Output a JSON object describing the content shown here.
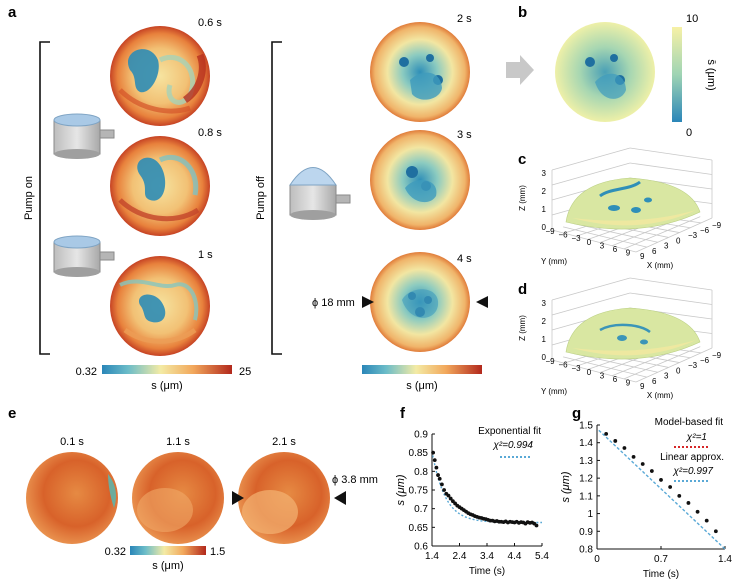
{
  "panels": {
    "a": {
      "letter": "a",
      "pump_on_label": "Pump on",
      "pump_off_label": "Pump off",
      "pump_on_times": [
        "0.6 s",
        "0.8 s",
        "1 s"
      ],
      "pump_off_times": [
        "2 s",
        "3 s",
        "4 s"
      ],
      "diameter_label": "ϕ 18 mm",
      "colorbar_min": "0.32",
      "colorbar_max": "25",
      "colorbar_label_on": "s (μm)",
      "colorbar_label_off": "s (μm)"
    },
    "b": {
      "letter": "b",
      "colorbar_max": "10",
      "colorbar_min": "0",
      "colorbar_label": "s̄ (μm)"
    },
    "c": {
      "letter": "c",
      "zlabel": "Z (mm)",
      "ylabel": "Y (mm)",
      "xlabel": "X (mm)",
      "z_ticks": [
        "3",
        "2",
        "1",
        "0"
      ],
      "y_ticks": [
        "−9",
        "−6",
        "−3",
        "0",
        "3",
        "6",
        "9"
      ],
      "x_ticks": [
        "9",
        "6",
        "3",
        "0",
        "−3",
        "−6",
        "−9"
      ]
    },
    "d": {
      "letter": "d",
      "zlabel": "Z (mm)",
      "ylabel": "Y (mm)",
      "xlabel": "X (mm)",
      "z_ticks": [
        "3",
        "2",
        "1",
        "0"
      ],
      "y_ticks": [
        "−9",
        "−6",
        "−3",
        "0",
        "3",
        "6",
        "9"
      ],
      "x_ticks": [
        "9",
        "6",
        "3",
        "0",
        "−3",
        "−6",
        "−9"
      ]
    },
    "e": {
      "letter": "e",
      "times": [
        "0.1 s",
        "1.1 s",
        "2.1 s"
      ],
      "diameter_label": "ϕ 3.8 mm",
      "colorbar_min": "0.32",
      "colorbar_max": "1.5",
      "colorbar_label": "s (μm)"
    },
    "f": {
      "letter": "f"
    },
    "g": {
      "letter": "g"
    }
  },
  "colors": {
    "teal": "#2f8fb8",
    "orange": "#d8622a",
    "dark_red": "#a8201a",
    "pale_yellow": "#f8eea8",
    "fit_blue": "#5aa9d6",
    "fit_red": "#d62728"
  },
  "chart_data": [
    {
      "id": "f",
      "type": "scatter",
      "title": "",
      "xlabel": "Time (s)",
      "ylabel": "s (μm)",
      "xlim": [
        1.4,
        5.4
      ],
      "ylim": [
        0.6,
        0.9
      ],
      "x_ticks": [
        "1.4",
        "2.4",
        "3.4",
        "4.4",
        "5.4"
      ],
      "y_ticks": [
        "0.9",
        "0.85",
        "0.8",
        "0.75",
        "0.7",
        "0.65",
        "0.6"
      ],
      "legend": {
        "placement": "top-right",
        "entries": [
          "Exponential fit"
        ],
        "stat": "χ²=0.994"
      },
      "series": [
        {
          "name": "Exponential fit",
          "x": [
            1.44,
            1.5,
            1.56,
            1.62,
            1.68,
            1.76,
            1.84,
            1.92,
            2.0,
            2.08,
            2.16,
            2.24,
            2.32,
            2.4,
            2.48,
            2.56,
            2.64,
            2.72,
            2.8,
            2.88,
            2.96,
            3.04,
            3.12,
            3.2,
            3.28,
            3.36,
            3.44,
            3.52,
            3.6,
            3.68,
            3.76,
            3.84,
            3.92,
            4.0,
            4.08,
            4.16,
            4.24,
            4.32,
            4.4,
            4.48,
            4.56,
            4.64,
            4.72,
            4.8,
            4.88,
            4.96,
            5.04,
            5.12,
            5.2
          ],
          "y": [
            0.85,
            0.83,
            0.81,
            0.79,
            0.78,
            0.765,
            0.75,
            0.74,
            0.735,
            0.727,
            0.72,
            0.714,
            0.708,
            0.704,
            0.7,
            0.696,
            0.692,
            0.688,
            0.685,
            0.683,
            0.68,
            0.678,
            0.676,
            0.675,
            0.673,
            0.672,
            0.67,
            0.668,
            0.668,
            0.666,
            0.667,
            0.665,
            0.665,
            0.664,
            0.666,
            0.663,
            0.665,
            0.664,
            0.663,
            0.665,
            0.662,
            0.664,
            0.663,
            0.66,
            0.664,
            0.662,
            0.663,
            0.66,
            0.655
          ]
        }
      ]
    },
    {
      "id": "g",
      "type": "scatter",
      "title": "",
      "xlabel": "Time (s)",
      "ylabel": "s (μm)",
      "xlim": [
        0,
        1.4
      ],
      "ylim": [
        0.8,
        1.5
      ],
      "x_ticks": [
        "0",
        "0.7",
        "1.4"
      ],
      "y_ticks": [
        "1.5",
        "1.4",
        "1.3",
        "1.2",
        "1.1",
        "1",
        "0.9",
        "0.8"
      ],
      "legend": {
        "placement": "top-right",
        "entries": [
          "Model-based fit",
          "Linear approx."
        ],
        "stats": [
          "χ²=1",
          "χ²=0.997"
        ]
      },
      "series": [
        {
          "name": "data",
          "x": [
            0.1,
            0.2,
            0.3,
            0.4,
            0.5,
            0.6,
            0.7,
            0.8,
            0.9,
            1.0,
            1.1,
            1.2,
            1.3
          ],
          "y": [
            1.45,
            1.41,
            1.37,
            1.32,
            1.28,
            1.24,
            1.19,
            1.15,
            1.1,
            1.06,
            1.01,
            0.96,
            0.9
          ]
        }
      ]
    }
  ]
}
